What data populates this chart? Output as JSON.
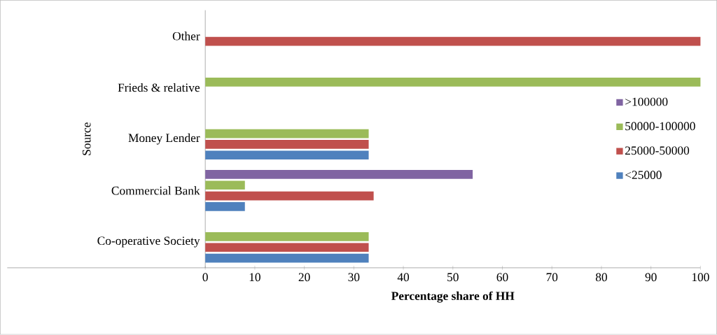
{
  "chart_data": {
    "type": "bar",
    "orientation": "horizontal",
    "xlabel": "Percentage share of HH",
    "ylabel": "Source",
    "categories": [
      "Other",
      "Frieds & relative",
      "Money Lender",
      "Commercial Bank",
      "Co-operative Society"
    ],
    "series": [
      {
        "name": "<25000",
        "color": "#4f81bd",
        "values": [
          null,
          null,
          33,
          8,
          33
        ]
      },
      {
        "name": "25000-50000",
        "color": "#c0504d",
        "values": [
          100,
          null,
          33,
          34,
          33
        ]
      },
      {
        "name": "50000-100000",
        "color": "#9bbb59",
        "values": [
          null,
          100,
          33,
          8,
          33
        ]
      },
      {
        "name": ">100000",
        "color": "#8064a2",
        "values": [
          null,
          null,
          null,
          54,
          null
        ]
      }
    ],
    "xlim": [
      0,
      100
    ],
    "xticks": [
      0,
      10,
      20,
      30,
      40,
      50,
      60,
      70,
      80,
      90,
      100
    ],
    "grid": false,
    "legend": "right"
  }
}
